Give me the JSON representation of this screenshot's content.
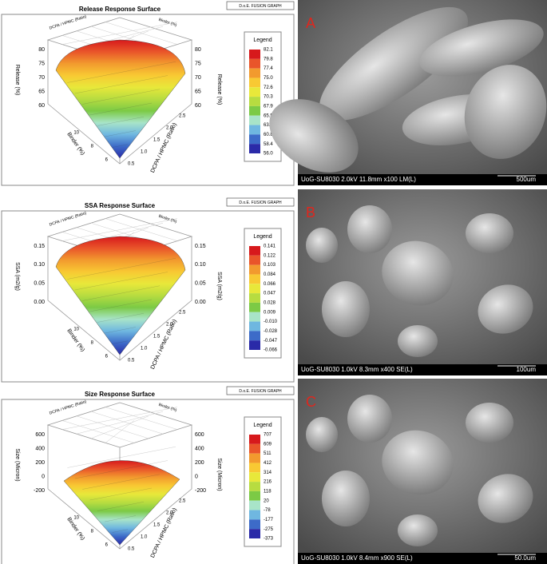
{
  "panels": [
    {
      "title": "Release Response Surface",
      "badge": "D.o.E. FUSION GRAPH",
      "legend_title": "Legend",
      "legend_values": [
        "82.1",
        "79.8",
        "77.4",
        "75.0",
        "72.6",
        "70.3",
        "67.9",
        "65.5",
        "63.2",
        "60.8",
        "58.4",
        "56.0"
      ],
      "z_label": "Release (%)",
      "x_label": "DCPA / HPMC (Ratio)",
      "y_label": "Binder (%)",
      "z_ticks": [
        "80",
        "75",
        "70",
        "65",
        "60"
      ],
      "x_ticks": [
        "0.5",
        "1.0",
        "1.5",
        "2.0",
        "2.5"
      ],
      "y_ticks": [
        "6",
        "8",
        "10"
      ]
    },
    {
      "title": "SSA Response Surface",
      "badge": "D.o.E. FUSION GRAPH",
      "legend_title": "Legend",
      "legend_values": [
        "0.141",
        "0.122",
        "0.103",
        "0.084",
        "0.066",
        "0.047",
        "0.028",
        "0.009",
        "-0.010",
        "-0.028",
        "-0.047",
        "-0.066"
      ],
      "z_label": "SSA (m2/g)",
      "x_label": "DCPA / HPMC (Ratio)",
      "y_label": "Binder (%)",
      "z_ticks": [
        "0.15",
        "0.10",
        "0.05",
        "0.00"
      ],
      "x_ticks": [
        "0.5",
        "1.0",
        "1.5",
        "2.0",
        "2.5"
      ],
      "y_ticks": [
        "6",
        "8",
        "10"
      ]
    },
    {
      "title": "Size Response Surface",
      "badge": "D.o.E. FUSION GRAPH",
      "legend_title": "Legend",
      "legend_values": [
        "707",
        "609",
        "511",
        "412",
        "314",
        "216",
        "118",
        "20",
        "-78",
        "-177",
        "-275",
        "-373"
      ],
      "z_label": "Size (Micron)",
      "x_label": "DCPA / HPMC (Ratio)",
      "y_label": "Binder (%)",
      "z_ticks": [
        "600",
        "400",
        "200",
        "0",
        "-200"
      ],
      "x_ticks": [
        "0.5",
        "1.0",
        "1.5",
        "2.0",
        "2.5"
      ],
      "y_ticks": [
        "6",
        "8",
        "10"
      ]
    }
  ],
  "legend_colors": [
    "#d7191c",
    "#e9552a",
    "#f29a2e",
    "#f8c933",
    "#e8e83a",
    "#b7dc40",
    "#7cca45",
    "#a8e4c8",
    "#6fb7e0",
    "#3d6bc8",
    "#2a2aa8"
  ],
  "images": [
    {
      "label": "A",
      "caption": "UoG-SU8030 2.0kV 11.8mm x100 LM(L)",
      "scale": "500um"
    },
    {
      "label": "B",
      "caption": "UoG-SU8030 1.0kV 8.3mm x400 SE(L)",
      "scale": "100um"
    },
    {
      "label": "C",
      "caption": "UoG-SU8030 1.0kV 8.4mm x900 SE(L)",
      "scale": "50.0um"
    }
  ]
}
